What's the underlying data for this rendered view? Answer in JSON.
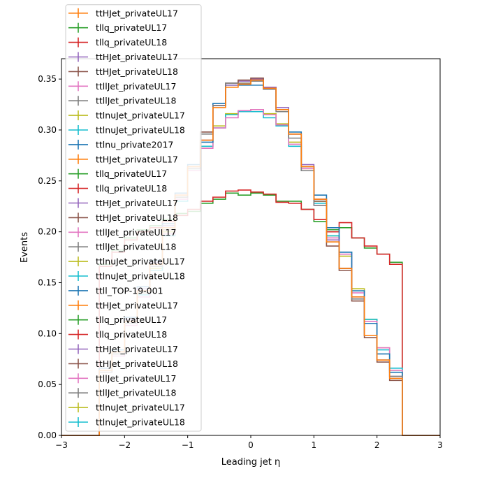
{
  "chart_data": {
    "type": "line",
    "drawstyle": "steps",
    "xlabel": "Leading jet  η",
    "ylabel": "Events",
    "xlim": [
      -3,
      3
    ],
    "ylim": [
      0,
      0.37
    ],
    "xticks": [
      "-3",
      "-2",
      "-1",
      "0",
      "1",
      "2",
      "3"
    ],
    "yticks": [
      "0.00",
      "0.05",
      "0.10",
      "0.15",
      "0.20",
      "0.25",
      "0.30",
      "0.35"
    ],
    "legend_position": "upper-left",
    "legend_entries": [
      {
        "label": "ttHJet_privateUL17",
        "color": "#ff7f0e"
      },
      {
        "label": "tllq_privateUL17",
        "color": "#2ca02c"
      },
      {
        "label": "tllq_privateUL18",
        "color": "#d62728"
      },
      {
        "label": "ttHJet_privateUL17",
        "color": "#9467bd"
      },
      {
        "label": "ttHJet_privateUL18",
        "color": "#8c564b"
      },
      {
        "label": "ttllJet_privateUL17",
        "color": "#e377c2"
      },
      {
        "label": "ttllJet_privateUL18",
        "color": "#7f7f7f"
      },
      {
        "label": "ttlnuJet_privateUL17",
        "color": "#bcbd22"
      },
      {
        "label": "ttlnuJet_privateUL18",
        "color": "#17becf"
      },
      {
        "label": "ttlnu_private2017",
        "color": "#1f77b4"
      },
      {
        "label": "ttHJet_privateUL17",
        "color": "#ff7f0e"
      },
      {
        "label": "tllq_privateUL17",
        "color": "#2ca02c"
      },
      {
        "label": "tllq_privateUL18",
        "color": "#d62728"
      },
      {
        "label": "ttHJet_privateUL17",
        "color": "#9467bd"
      },
      {
        "label": "ttHJet_privateUL18",
        "color": "#8c564b"
      },
      {
        "label": "ttllJet_privateUL17",
        "color": "#e377c2"
      },
      {
        "label": "ttllJet_privateUL18",
        "color": "#7f7f7f"
      },
      {
        "label": "ttlnuJet_privateUL17",
        "color": "#bcbd22"
      },
      {
        "label": "ttlnuJet_privateUL18",
        "color": "#17becf"
      },
      {
        "label": "ttll_TOP-19-001",
        "color": "#1f77b4"
      },
      {
        "label": "ttHJet_privateUL17",
        "color": "#ff7f0e"
      },
      {
        "label": "tllq_privateUL17",
        "color": "#2ca02c"
      },
      {
        "label": "tllq_privateUL18",
        "color": "#d62728"
      },
      {
        "label": "ttHJet_privateUL17",
        "color": "#9467bd"
      },
      {
        "label": "ttHJet_privateUL18",
        "color": "#8c564b"
      },
      {
        "label": "ttllJet_privateUL17",
        "color": "#e377c2"
      },
      {
        "label": "ttllJet_privateUL18",
        "color": "#7f7f7f"
      },
      {
        "label": "ttlnuJet_privateUL17",
        "color": "#bcbd22"
      },
      {
        "label": "ttlnuJet_privateUL18",
        "color": "#17becf"
      }
    ],
    "bin_edges": [
      -3.0,
      -2.8,
      -2.6,
      -2.4,
      -2.2,
      -2.0,
      -1.8,
      -1.6,
      -1.4,
      -1.2,
      -1.0,
      -0.8,
      -0.6,
      -0.4,
      -0.2,
      0.0,
      0.2,
      0.4,
      0.6,
      0.8,
      1.0,
      1.2,
      1.4,
      1.6,
      1.8,
      2.0,
      2.2,
      2.4,
      2.6,
      2.8,
      3.0
    ],
    "series": [
      {
        "color": "#2ca02c",
        "values": [
          0,
          0,
          0,
          0.168,
          0.182,
          0.194,
          0.202,
          0.206,
          0.212,
          0.218,
          0.22,
          0.228,
          0.232,
          0.238,
          0.236,
          0.238,
          0.236,
          0.23,
          0.23,
          0.222,
          0.21,
          0.202,
          0.204,
          0.194,
          0.184,
          0.178,
          0.17,
          0,
          0,
          0
        ]
      },
      {
        "color": "#d62728",
        "values": [
          0,
          0,
          0,
          0.166,
          0.18,
          0.192,
          0.2,
          0.204,
          0.21,
          0.216,
          0.222,
          0.23,
          0.234,
          0.24,
          0.241,
          0.239,
          0.237,
          0.229,
          0.228,
          0.222,
          0.212,
          0.2,
          0.209,
          0.194,
          0.186,
          0.178,
          0.168,
          0,
          0,
          0
        ]
      },
      {
        "color": "#bcbd22",
        "values": [
          0,
          0,
          0,
          0.064,
          0.082,
          0.112,
          0.14,
          0.164,
          0.2,
          0.234,
          0.264,
          0.284,
          0.304,
          0.316,
          0.318,
          0.32,
          0.316,
          0.306,
          0.288,
          0.262,
          0.23,
          0.196,
          0.176,
          0.144,
          0.114,
          0.086,
          0.064,
          0,
          0,
          0
        ]
      },
      {
        "color": "#17becf",
        "values": [
          0,
          0,
          0,
          0.064,
          0.08,
          0.11,
          0.138,
          0.162,
          0.196,
          0.23,
          0.262,
          0.284,
          0.302,
          0.315,
          0.318,
          0.318,
          0.312,
          0.304,
          0.284,
          0.26,
          0.228,
          0.196,
          0.18,
          0.142,
          0.114,
          0.084,
          0.066,
          0,
          0,
          0
        ]
      },
      {
        "color": "#e377c2",
        "values": [
          0,
          0,
          0,
          0.062,
          0.078,
          0.108,
          0.136,
          0.166,
          0.198,
          0.232,
          0.26,
          0.282,
          0.302,
          0.312,
          0.319,
          0.32,
          0.315,
          0.305,
          0.286,
          0.262,
          0.226,
          0.194,
          0.178,
          0.14,
          0.112,
          0.086,
          0.064,
          0,
          0,
          0
        ]
      },
      {
        "color": "#1f77b4",
        "values": [
          0,
          0,
          0,
          0.066,
          0.084,
          0.116,
          0.146,
          0.172,
          0.208,
          0.238,
          0.266,
          0.288,
          0.326,
          0.344,
          0.344,
          0.344,
          0.342,
          0.32,
          0.298,
          0.264,
          0.236,
          0.204,
          0.18,
          0.142,
          0.11,
          0.08,
          0.062,
          0,
          0,
          0
        ]
      },
      {
        "color": "#9467bd",
        "values": [
          0,
          0,
          0,
          0.064,
          0.082,
          0.114,
          0.144,
          0.17,
          0.206,
          0.236,
          0.264,
          0.29,
          0.324,
          0.344,
          0.348,
          0.35,
          0.342,
          0.322,
          0.296,
          0.266,
          0.232,
          0.192,
          0.164,
          0.136,
          0.098,
          0.074,
          0.058,
          0,
          0,
          0
        ]
      },
      {
        "color": "#8c564b",
        "values": [
          0,
          0,
          0,
          0.062,
          0.08,
          0.112,
          0.142,
          0.168,
          0.202,
          0.234,
          0.262,
          0.298,
          0.324,
          0.346,
          0.349,
          0.351,
          0.34,
          0.32,
          0.296,
          0.264,
          0.23,
          0.186,
          0.162,
          0.132,
          0.096,
          0.072,
          0.054,
          0,
          0,
          0
        ]
      },
      {
        "color": "#7f7f7f",
        "values": [
          0,
          0,
          0,
          0.062,
          0.08,
          0.11,
          0.14,
          0.166,
          0.204,
          0.234,
          0.262,
          0.296,
          0.324,
          0.346,
          0.346,
          0.348,
          0.34,
          0.318,
          0.292,
          0.26,
          0.226,
          0.19,
          0.164,
          0.134,
          0.098,
          0.074,
          0.058,
          0,
          0,
          0
        ]
      },
      {
        "color": "#ff7f0e",
        "values": [
          0,
          0,
          0,
          0.064,
          0.082,
          0.112,
          0.142,
          0.168,
          0.204,
          0.236,
          0.264,
          0.29,
          0.322,
          0.342,
          0.345,
          0.349,
          0.341,
          0.32,
          0.296,
          0.264,
          0.232,
          0.19,
          0.164,
          0.136,
          0.098,
          0.074,
          0.056,
          0,
          0,
          0
        ]
      }
    ]
  }
}
